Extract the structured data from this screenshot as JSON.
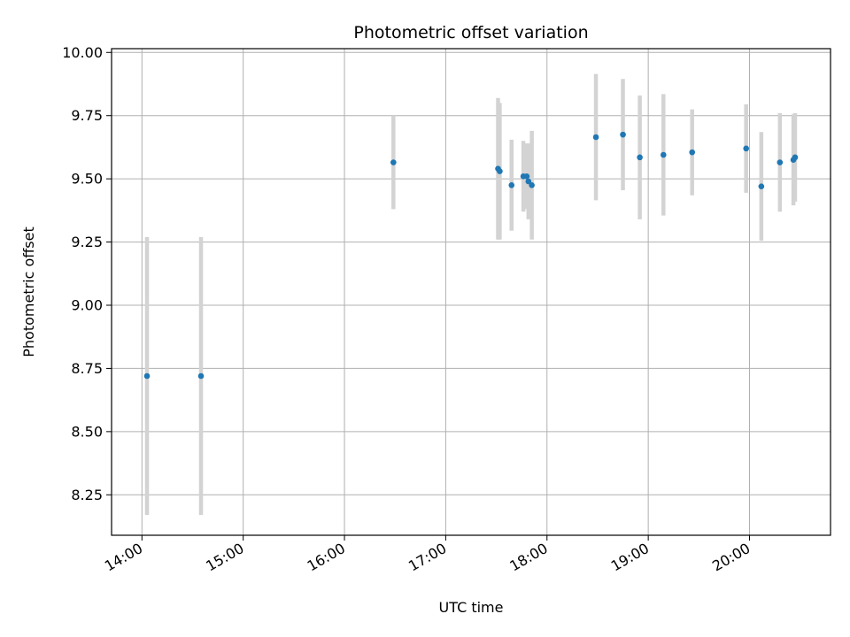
{
  "chart_data": {
    "type": "scatter",
    "title": "Photometric offset variation",
    "xlabel": "UTC time",
    "ylabel": "Photometric offset",
    "xticks": [
      "14:00",
      "15:00",
      "16:00",
      "17:00",
      "18:00",
      "19:00",
      "20:00"
    ],
    "yticks": [
      "8.25",
      "8.50",
      "8.75",
      "9.00",
      "9.25",
      "9.50",
      "9.75",
      "10.00"
    ],
    "xlim": [
      "13:42",
      "20:48"
    ],
    "ylim": [
      8.09,
      10.015
    ],
    "grid": true,
    "colors": {
      "marker": "#1f77b4",
      "errorbar": "#d3d3d3",
      "grid": "#b0b0b0"
    },
    "points": [
      {
        "x": "14:03",
        "y": 8.72,
        "err": 0.55
      },
      {
        "x": "14:35",
        "y": 8.72,
        "err": 0.55
      },
      {
        "x": "16:29",
        "y": 9.565,
        "err": 0.185
      },
      {
        "x": "17:31",
        "y": 9.54,
        "err": 0.28
      },
      {
        "x": "17:32",
        "y": 9.53,
        "err": 0.27
      },
      {
        "x": "17:39",
        "y": 9.475,
        "err": 0.18
      },
      {
        "x": "17:46",
        "y": 9.51,
        "err": 0.14
      },
      {
        "x": "17:48",
        "y": 9.51,
        "err": 0.13
      },
      {
        "x": "17:49",
        "y": 9.49,
        "err": 0.15
      },
      {
        "x": "17:51",
        "y": 9.475,
        "err": 0.215
      },
      {
        "x": "18:29",
        "y": 9.665,
        "err": 0.25
      },
      {
        "x": "18:45",
        "y": 9.675,
        "err": 0.22
      },
      {
        "x": "18:55",
        "y": 9.585,
        "err": 0.245
      },
      {
        "x": "19:09",
        "y": 9.595,
        "err": 0.24
      },
      {
        "x": "19:26",
        "y": 9.605,
        "err": 0.17
      },
      {
        "x": "19:58",
        "y": 9.62,
        "err": 0.175
      },
      {
        "x": "20:07",
        "y": 9.47,
        "err": 0.215
      },
      {
        "x": "20:18",
        "y": 9.565,
        "err": 0.195
      },
      {
        "x": "20:26",
        "y": 9.575,
        "err": 0.18
      },
      {
        "x": "20:27",
        "y": 9.585,
        "err": 0.175
      }
    ]
  }
}
